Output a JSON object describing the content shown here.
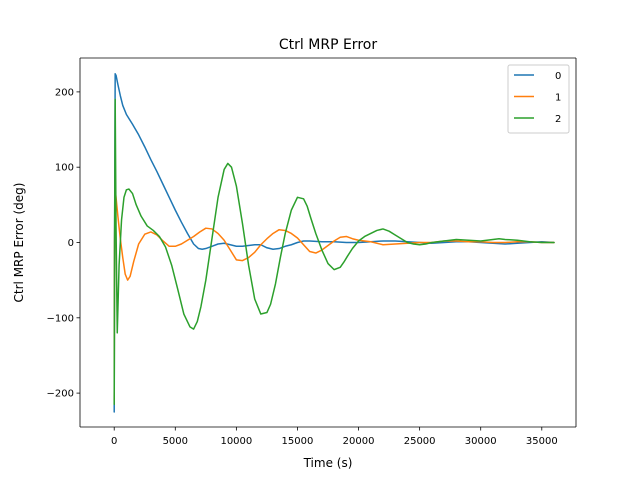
{
  "chart_data": {
    "type": "line",
    "title": "Ctrl MRP Error",
    "xlabel": "Time (s)",
    "ylabel": "Ctrl MRP Error (deg)",
    "xlim": [
      -2800,
      37800
    ],
    "ylim": [
      -245,
      245
    ],
    "xticks": [
      0,
      5000,
      10000,
      15000,
      20000,
      25000,
      30000,
      35000
    ],
    "xtick_labels": [
      "0",
      "5000",
      "10000",
      "15000",
      "20000",
      "25000",
      "30000",
      "35000"
    ],
    "yticks": [
      -200,
      -100,
      0,
      100,
      200
    ],
    "ytick_labels": [
      "−200",
      "−100",
      "0",
      "100",
      "200"
    ],
    "grid": false,
    "legend_position": "top-right",
    "series": [
      {
        "name": "0",
        "color": "#1f77b4",
        "x": [
          0,
          30,
          80,
          150,
          300,
          500,
          700,
          1000,
          1500,
          2000,
          2500,
          3000,
          3500,
          4000,
          4500,
          5000,
          5500,
          6000,
          6500,
          6900,
          7200,
          7500,
          8000,
          8500,
          9000,
          9500,
          10000,
          10500,
          11000,
          11500,
          12000,
          12500,
          13000,
          13500,
          14000,
          14500,
          15000,
          15500,
          16000,
          17000,
          18000,
          19000,
          20000,
          21000,
          22000,
          23000,
          24000,
          25000,
          26000,
          27000,
          28000,
          29000,
          30000,
          31000,
          32000,
          33000,
          34000,
          35000,
          36000
        ],
        "y": [
          -225,
          0,
          224,
          222,
          210,
          195,
          182,
          170,
          157,
          143,
          127,
          110,
          94,
          77,
          60,
          43,
          27,
          12,
          -2,
          -8,
          -9,
          -8,
          -5,
          -2,
          -1,
          -3,
          -5,
          -5,
          -4,
          -3,
          -3,
          -7,
          -9,
          -8,
          -5,
          -3,
          0,
          2,
          2,
          1,
          1,
          0,
          0,
          1,
          2,
          2,
          1,
          0,
          -1,
          0,
          1,
          1,
          0,
          -1,
          -2,
          -1,
          0,
          1,
          0
        ]
      },
      {
        "name": "1",
        "color": "#ff7f0e",
        "x": [
          0,
          30,
          80,
          150,
          300,
          500,
          700,
          900,
          1100,
          1300,
          1600,
          2000,
          2500,
          3000,
          3500,
          4000,
          4500,
          5000,
          5500,
          6000,
          6500,
          7000,
          7500,
          8000,
          8500,
          9000,
          9500,
          10000,
          10500,
          11000,
          11500,
          12000,
          12500,
          13000,
          13500,
          14000,
          14500,
          15000,
          15500,
          16000,
          16500,
          17000,
          17500,
          18000,
          18500,
          19000,
          19500,
          20000,
          20500,
          21000,
          22000,
          23000,
          24000,
          25000,
          26000,
          27000,
          28000,
          29000,
          30000,
          31000,
          32000,
          33000,
          34000,
          35000,
          36000
        ],
        "y": [
          -210,
          0,
          70,
          60,
          35,
          5,
          -20,
          -42,
          -50,
          -45,
          -25,
          -2,
          11,
          14,
          10,
          2,
          -5,
          -5,
          -2,
          3,
          8,
          14,
          19,
          18,
          12,
          3,
          -10,
          -23,
          -24,
          -20,
          -13,
          -3,
          5,
          12,
          17,
          16,
          12,
          6,
          -3,
          -12,
          -14,
          -10,
          -4,
          2,
          7,
          8,
          5,
          3,
          2,
          1,
          -3,
          -2,
          -1,
          0,
          0,
          2,
          2,
          1,
          1,
          0,
          0,
          1,
          1,
          0,
          0
        ]
      },
      {
        "name": "2",
        "color": "#2ca02c",
        "x": [
          0,
          30,
          80,
          150,
          250,
          400,
          600,
          800,
          1000,
          1200,
          1500,
          1800,
          2200,
          2700,
          3200,
          3700,
          4200,
          4700,
          5200,
          5700,
          6200,
          6500,
          6800,
          7100,
          7500,
          8000,
          8500,
          9000,
          9300,
          9600,
          10000,
          10500,
          11000,
          11500,
          12000,
          12500,
          12800,
          13200,
          13600,
          14000,
          14500,
          15000,
          15500,
          15800,
          16100,
          16500,
          17000,
          17500,
          18000,
          18500,
          18800,
          19100,
          19500,
          20000,
          20500,
          21000,
          21500,
          22000,
          22500,
          23000,
          23500,
          24000,
          24500,
          25000,
          25500,
          26000,
          26500,
          27000,
          27500,
          28000,
          29000,
          30000,
          31000,
          31500,
          32000,
          33000,
          34000,
          35000,
          36000
        ],
        "y": [
          -215,
          0,
          190,
          20,
          -120,
          -30,
          30,
          60,
          70,
          71,
          65,
          50,
          35,
          22,
          16,
          8,
          -6,
          -30,
          -62,
          -95,
          -112,
          -115,
          -105,
          -85,
          -50,
          5,
          60,
          97,
          105,
          100,
          75,
          25,
          -30,
          -75,
          -95,
          -93,
          -82,
          -55,
          -20,
          12,
          43,
          60,
          58,
          48,
          32,
          12,
          -10,
          -28,
          -36,
          -33,
          -26,
          -18,
          -8,
          2,
          8,
          12,
          16,
          18,
          15,
          10,
          5,
          0,
          -2,
          -3,
          -2,
          0,
          1,
          2,
          3,
          4,
          3,
          2,
          4,
          5,
          4,
          3,
          1,
          0,
          0
        ]
      }
    ]
  }
}
